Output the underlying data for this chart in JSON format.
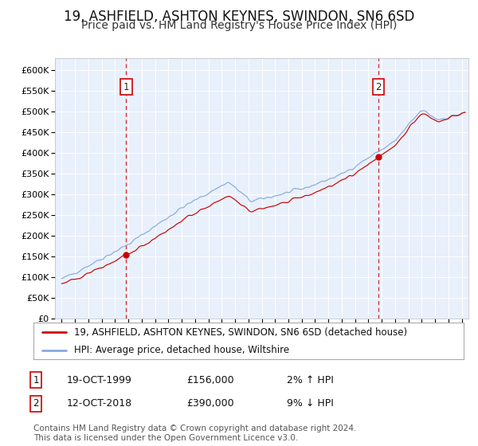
{
  "title": "19, ASHFIELD, ASHTON KEYNES, SWINDON, SN6 6SD",
  "subtitle": "Price paid vs. HM Land Registry's House Price Index (HPI)",
  "title_fontsize": 12,
  "subtitle_fontsize": 10,
  "bg_color": "#ffffff",
  "plot_bg_color": "#e8f0fb",
  "line1_color": "#cc0000",
  "line2_color": "#88aadd",
  "line1_label": "19, ASHFIELD, ASHTON KEYNES, SWINDON, SN6 6SD (detached house)",
  "line2_label": "HPI: Average price, detached house, Wiltshire",
  "sale1_date_label": "19-OCT-1999",
  "sale1_price_label": "£156,000",
  "sale1_pct": "2% ↑ HPI",
  "sale2_date_label": "12-OCT-2018",
  "sale2_price_label": "£390,000",
  "sale2_pct": "9% ↓ HPI",
  "sale1_x": 1999.8,
  "sale2_x": 2018.78,
  "ylim": [
    0,
    630000
  ],
  "xlim": [
    1994.5,
    2025.5
  ],
  "yticks": [
    0,
    50000,
    100000,
    150000,
    200000,
    250000,
    300000,
    350000,
    400000,
    450000,
    500000,
    550000,
    600000
  ],
  "ytick_labels": [
    "£0",
    "£50K",
    "£100K",
    "£150K",
    "£200K",
    "£250K",
    "£300K",
    "£350K",
    "£400K",
    "£450K",
    "£500K",
    "£550K",
    "£600K"
  ],
  "footer": "Contains HM Land Registry data © Crown copyright and database right 2024.\nThis data is licensed under the Open Government Licence v3.0.",
  "footer_fontsize": 7.5,
  "legend_fontsize": 8.5,
  "annotation_fontsize": 9
}
